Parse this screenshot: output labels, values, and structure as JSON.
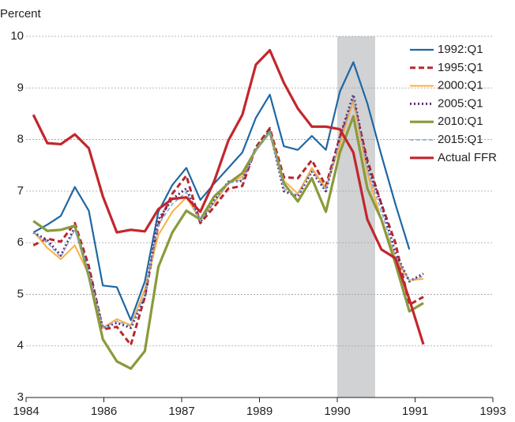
{
  "chart_data": {
    "type": "line",
    "y_label": "Percent",
    "x": [
      1984.14,
      1984.41,
      1984.67,
      1984.94,
      1985.21,
      1985.48,
      1985.75,
      1986.02,
      1986.29,
      1986.55,
      1986.82,
      1987.09,
      1987.36,
      1987.63,
      1987.9,
      1988.17,
      1988.43,
      1988.7,
      1988.97,
      1989.24,
      1989.51,
      1989.78,
      1990.05,
      1990.31,
      1990.58,
      1990.85,
      1991.12,
      1991.39,
      1991.66
    ],
    "series": [
      {
        "name": "1992:Q1",
        "color": "#1f67a3",
        "dash": "none",
        "width": 2.2,
        "values": [
          6.2,
          6.35,
          6.52,
          7.08,
          6.62,
          5.17,
          5.14,
          4.5,
          5.25,
          6.6,
          7.12,
          7.45,
          6.83,
          7.15,
          7.45,
          7.75,
          8.42,
          8.87,
          7.87,
          7.8,
          8.07,
          7.8,
          8.93,
          9.5,
          8.7,
          7.7,
          6.75,
          5.87,
          null
        ]
      },
      {
        "name": "1995:Q1",
        "color": "#b8282e",
        "dash": "7,4",
        "width": 3,
        "values": [
          5.95,
          6.08,
          6.02,
          6.38,
          5.55,
          4.32,
          4.37,
          4.02,
          4.95,
          6.35,
          6.95,
          7.3,
          6.38,
          6.7,
          7.05,
          7.1,
          7.85,
          8.22,
          7.27,
          7.25,
          7.6,
          7.1,
          8.05,
          8.75,
          7.6,
          6.75,
          6.0,
          4.8,
          4.95
        ]
      },
      {
        "name": "2000:Q1",
        "color": "#fbb040",
        "dash": "none",
        "width": 2,
        "values": [
          6.22,
          5.9,
          5.68,
          5.95,
          5.38,
          4.35,
          4.52,
          4.4,
          5.1,
          6.15,
          6.6,
          6.88,
          6.45,
          6.78,
          7.15,
          7.28,
          7.8,
          8.15,
          7.2,
          6.95,
          7.45,
          7.05,
          7.9,
          8.75,
          7.35,
          6.45,
          5.7,
          5.27,
          5.3
        ]
      },
      {
        "name": "2005:Q1",
        "color": "#5b2a6e",
        "dash": "2,3",
        "width": 3,
        "values": [
          6.2,
          6.05,
          5.75,
          6.3,
          5.45,
          4.35,
          4.45,
          4.35,
          4.95,
          6.45,
          6.85,
          7.05,
          6.4,
          6.82,
          7.18,
          7.2,
          7.82,
          8.18,
          7.0,
          6.9,
          7.38,
          7.0,
          8.05,
          8.87,
          7.5,
          6.75,
          5.8,
          5.25,
          5.4
        ]
      },
      {
        "name": "2010:Q1",
        "color": "#8a9a3b",
        "dash": "none",
        "width": 3.2,
        "values": [
          6.42,
          6.23,
          6.25,
          6.33,
          5.35,
          4.13,
          3.7,
          3.56,
          3.9,
          5.53,
          6.2,
          6.62,
          6.45,
          6.9,
          7.15,
          7.35,
          7.8,
          8.15,
          7.15,
          6.8,
          7.25,
          6.6,
          7.75,
          8.45,
          7.05,
          6.45,
          5.6,
          4.67,
          4.83
        ]
      },
      {
        "name": "2015:Q1",
        "color": "#7fa6d4",
        "dash": "5,3",
        "width": 1.5,
        "values": [
          6.2,
          6.0,
          5.72,
          6.25,
          5.42,
          4.35,
          4.48,
          4.38,
          5.0,
          6.35,
          6.75,
          6.98,
          6.42,
          6.8,
          7.15,
          7.22,
          7.8,
          8.15,
          7.05,
          6.92,
          7.4,
          7.02,
          7.98,
          8.8,
          7.42,
          6.6,
          5.75,
          5.26,
          5.35
        ]
      },
      {
        "name": "Actual FFR",
        "color": "#c1272d",
        "dash": "none",
        "width": 3.2,
        "values": [
          8.48,
          7.93,
          7.91,
          8.1,
          7.83,
          6.9,
          6.2,
          6.25,
          6.22,
          6.65,
          6.85,
          6.88,
          6.6,
          7.2,
          7.98,
          8.48,
          9.45,
          9.73,
          9.1,
          8.6,
          8.25,
          8.25,
          8.2,
          7.75,
          6.45,
          5.87,
          5.7,
          4.9,
          4.03
        ]
      }
    ],
    "shaded_region": {
      "x": [
        1990.0,
        1990.73
      ],
      "color": "#d1d2d4"
    },
    "xlim": [
      1984,
      1993
    ],
    "xticks": [
      1984,
      {
        "value": 1985.5,
        "label": "1986"
      },
      1987,
      {
        "value": 1988.5,
        "label": "1989"
      },
      1990,
      {
        "value": 1991.5,
        "label": "1991"
      },
      1993
    ],
    "ylim": [
      3,
      10
    ],
    "yticks": [
      3,
      4,
      5,
      6,
      7,
      8,
      9,
      10
    ],
    "grid": true,
    "legend": "upper right"
  }
}
